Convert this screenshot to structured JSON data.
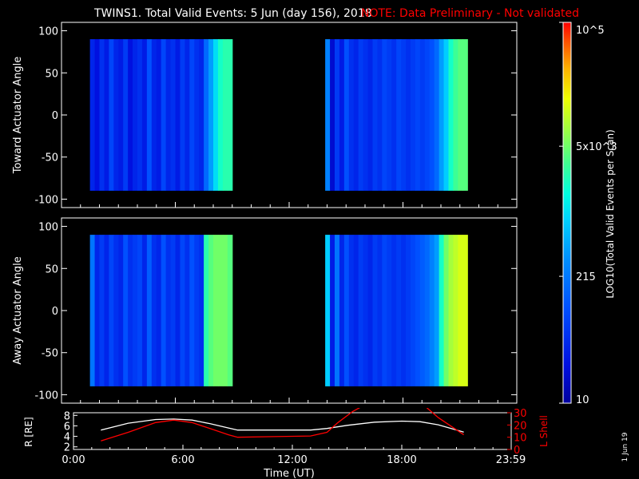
{
  "title": {
    "main": "TWINS1. Total Valid Events:  5 Jun (day 156), 2018",
    "note": "NOTE: Data Preliminary - Not validated",
    "note_color": "#ff0000"
  },
  "side_stamp": "1 Jun 19",
  "colorbar": {
    "label": "LOG10(Total Valid Events per Scan)",
    "ticks": [
      "10",
      "215",
      "5x10^3",
      "10^5"
    ],
    "tick_values": [
      10,
      215,
      5000,
      100000
    ],
    "scale": "log"
  },
  "chart_data": [
    {
      "type": "heatmap",
      "name": "toward",
      "ylabel": "Toward Actuator Angle",
      "ylim": [
        -110,
        110
      ],
      "yticks": [
        100,
        50,
        0,
        -50,
        -100
      ],
      "xlim": [
        0,
        24
      ],
      "angle_range": [
        -90,
        90
      ],
      "blocks": [
        {
          "t_start": 1.5,
          "t_end": 9.0,
          "levels": [
            1.6,
            1.4,
            1.7,
            1.5,
            1.9,
            1.6,
            1.5,
            1.8,
            1.4,
            1.6,
            1.7,
            1.5,
            2.0,
            1.6,
            1.5,
            1.9,
            1.6,
            1.7,
            1.5,
            1.8,
            1.6,
            1.9,
            1.7,
            1.6,
            2.2,
            2.6,
            3.0,
            3.3,
            3.4,
            3.4
          ]
        },
        {
          "t_start": 13.9,
          "t_end": 21.4,
          "levels": [
            2.4,
            1.3,
            1.8,
            1.5,
            2.0,
            1.7,
            1.6,
            1.8,
            1.7,
            1.6,
            1.8,
            1.7,
            1.9,
            1.8,
            1.7,
            1.9,
            1.8,
            1.7,
            1.8,
            1.9,
            1.8,
            1.9,
            2.0,
            2.2,
            2.6,
            2.9,
            3.3,
            3.5,
            3.6,
            3.6
          ]
        }
      ]
    },
    {
      "type": "heatmap",
      "name": "away",
      "ylabel": "Away Actuator Angle",
      "ylim": [
        -110,
        110
      ],
      "yticks": [
        100,
        50,
        0,
        -50,
        -100
      ],
      "xlim": [
        0,
        24
      ],
      "angle_range": [
        -90,
        90
      ],
      "blocks": [
        {
          "t_start": 1.5,
          "t_end": 9.0,
          "levels": [
            2.3,
            1.6,
            1.8,
            1.6,
            1.9,
            1.7,
            1.6,
            2.0,
            1.7,
            1.8,
            1.9,
            1.6,
            2.1,
            1.7,
            1.6,
            2.0,
            1.7,
            1.8,
            1.6,
            1.9,
            1.7,
            2.0,
            1.8,
            1.7,
            3.4,
            3.6,
            3.7,
            3.7,
            3.7,
            3.6
          ]
        },
        {
          "t_start": 13.9,
          "t_end": 21.4,
          "levels": [
            2.9,
            1.5,
            2.3,
            1.6,
            2.0,
            1.7,
            1.6,
            1.8,
            1.7,
            1.6,
            1.8,
            1.7,
            1.9,
            1.8,
            1.7,
            1.8,
            1.7,
            1.8,
            1.9,
            2.0,
            2.1,
            2.2,
            2.4,
            2.6,
            3.3,
            3.7,
            3.9,
            4.0,
            4.1,
            4.1
          ]
        }
      ]
    },
    {
      "type": "line",
      "name": "orbit",
      "ylabel_left": "R [RE]",
      "ylabel_right": "L Shell",
      "xlabel": "Time (UT)",
      "xlim": [
        0,
        24
      ],
      "xticks": [
        "0:00",
        "6:00",
        "12:00",
        "18:00",
        "23:59"
      ],
      "xtick_values": [
        0,
        6,
        12,
        18,
        23.98
      ],
      "ylim_left": [
        1.5,
        8.5
      ],
      "yticks_left": [
        2,
        4,
        6,
        8
      ],
      "ylim_right": [
        0,
        30
      ],
      "yticks_right": [
        0,
        10,
        20,
        30
      ],
      "series": [
        {
          "color": "#ffffff",
          "axis": "left",
          "x": [
            1.5,
            3,
            4.5,
            5.5,
            6.5,
            7.5,
            8.5,
            9,
            11,
            13,
            13.9,
            15,
            16.5,
            18,
            19,
            20,
            21.4
          ],
          "y": [
            5.2,
            6.5,
            7.2,
            7.3,
            7.1,
            6.4,
            5.6,
            5.2,
            5.2,
            5.2,
            5.5,
            6.1,
            6.7,
            6.9,
            6.8,
            6.2,
            4.8
          ]
        },
        {
          "color": "#ff0000",
          "axis": "right",
          "x": [
            1.5,
            3,
            4.5,
            5.5,
            6.5,
            7.5,
            8.5,
            9,
            11,
            13,
            13.9,
            14.5,
            15.3,
            15.8,
            19.3,
            20,
            21.4
          ],
          "y": [
            7,
            14,
            22,
            24,
            22,
            17,
            12,
            10,
            10.5,
            11,
            14,
            22,
            31,
            35,
            35,
            26,
            12
          ]
        }
      ]
    }
  ]
}
